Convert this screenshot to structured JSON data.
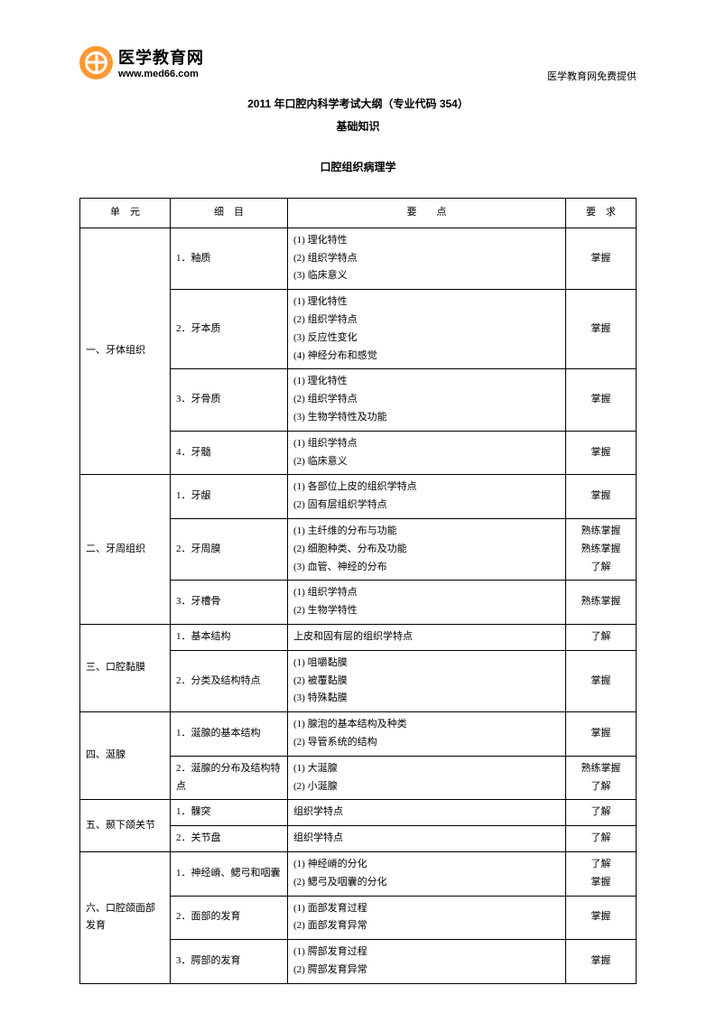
{
  "logo": {
    "title": "医学教育网",
    "url": "www.med66.com"
  },
  "topRight": "医学教育网免费提供",
  "docTitle": "2011 年口腔内科学考试大纲（专业代码 354）",
  "docSubtitle": "基础知识",
  "sectionTitle": "口腔组织病理学",
  "headers": {
    "unit": "单　元",
    "section": "细　目",
    "points": "要　　点",
    "req": "要　求"
  },
  "rows": [
    {
      "unit": "一、牙体组织",
      "unitSpan": 4,
      "section": "1．釉质",
      "points": "(1) 理化特性\n(2) 组织学特点\n(3) 临床意义",
      "req": "掌握"
    },
    {
      "section": "2．牙本质",
      "points": "(1) 理化特性\n(2) 组织学特点\n(3) 反应性变化\n(4) 神经分布和感觉",
      "req": "掌握"
    },
    {
      "section": "3．牙骨质",
      "points": "(1) 理化特性\n(2) 组织学特点\n(3) 生物学特性及功能",
      "req": "掌握"
    },
    {
      "section": "4．牙髓",
      "points": "(1) 组织学特点\n(2) 临床意义",
      "req": "掌握"
    },
    {
      "unit": "二、牙周组织",
      "unitSpan": 3,
      "section": "1．牙龈",
      "points": "(1) 各部位上皮的组织学特点\n(2) 固有层组织学特点",
      "req": "掌握"
    },
    {
      "section": "2．牙周膜",
      "points": "(1) 主纤维的分布与功能\n(2) 细胞种类、分布及功能\n(3) 血管、神经的分布",
      "req": "熟练掌握\n熟练掌握\n了解"
    },
    {
      "section": "3．牙槽骨",
      "points": "(1) 组织学特点\n(2) 生物学特性",
      "req": "熟练掌握"
    },
    {
      "unit": "三、口腔黏膜",
      "unitSpan": 2,
      "section": "1．基本结构",
      "points": "上皮和固有层的组织学特点",
      "req": "了解"
    },
    {
      "section": "2．分类及结构特点",
      "points": "(1) 咀嚼黏膜\n(2) 被覆黏膜\n(3) 特殊黏膜",
      "req": "掌握"
    },
    {
      "unit": "四、涎腺",
      "unitSpan": 2,
      "section": "1．涎腺的基本结构",
      "points": "(1) 腺泡的基本结构及种类\n(2) 导管系统的结构",
      "req": "掌握"
    },
    {
      "section": "2．涎腺的分布及结构特点",
      "points": "(1) 大涎腺\n(2) 小涎腺",
      "req": "熟练掌握\n了解"
    },
    {
      "unit": "五、颞下颌关节",
      "unitSpan": 2,
      "section": "1．髁突",
      "points": "组织学特点",
      "req": "了解"
    },
    {
      "section": "2．关节盘",
      "points": "组织学特点",
      "req": "了解"
    },
    {
      "unit": "六、口腔颌面部发育",
      "unitSpan": 3,
      "section": "1．神经嵴、鳃弓和咽囊",
      "points": "(1) 神经嵴的分化\n(2) 鳃弓及咽囊的分化",
      "req": "了解\n掌握"
    },
    {
      "section": "2．面部的发育",
      "points": "(1) 面部发育过程\n(2) 面部发育异常",
      "req": "掌握"
    },
    {
      "section": "3．腭部的发育",
      "points": "(1) 腭部发育过程\n(2) 腭部发育异常",
      "req": "掌握"
    }
  ]
}
